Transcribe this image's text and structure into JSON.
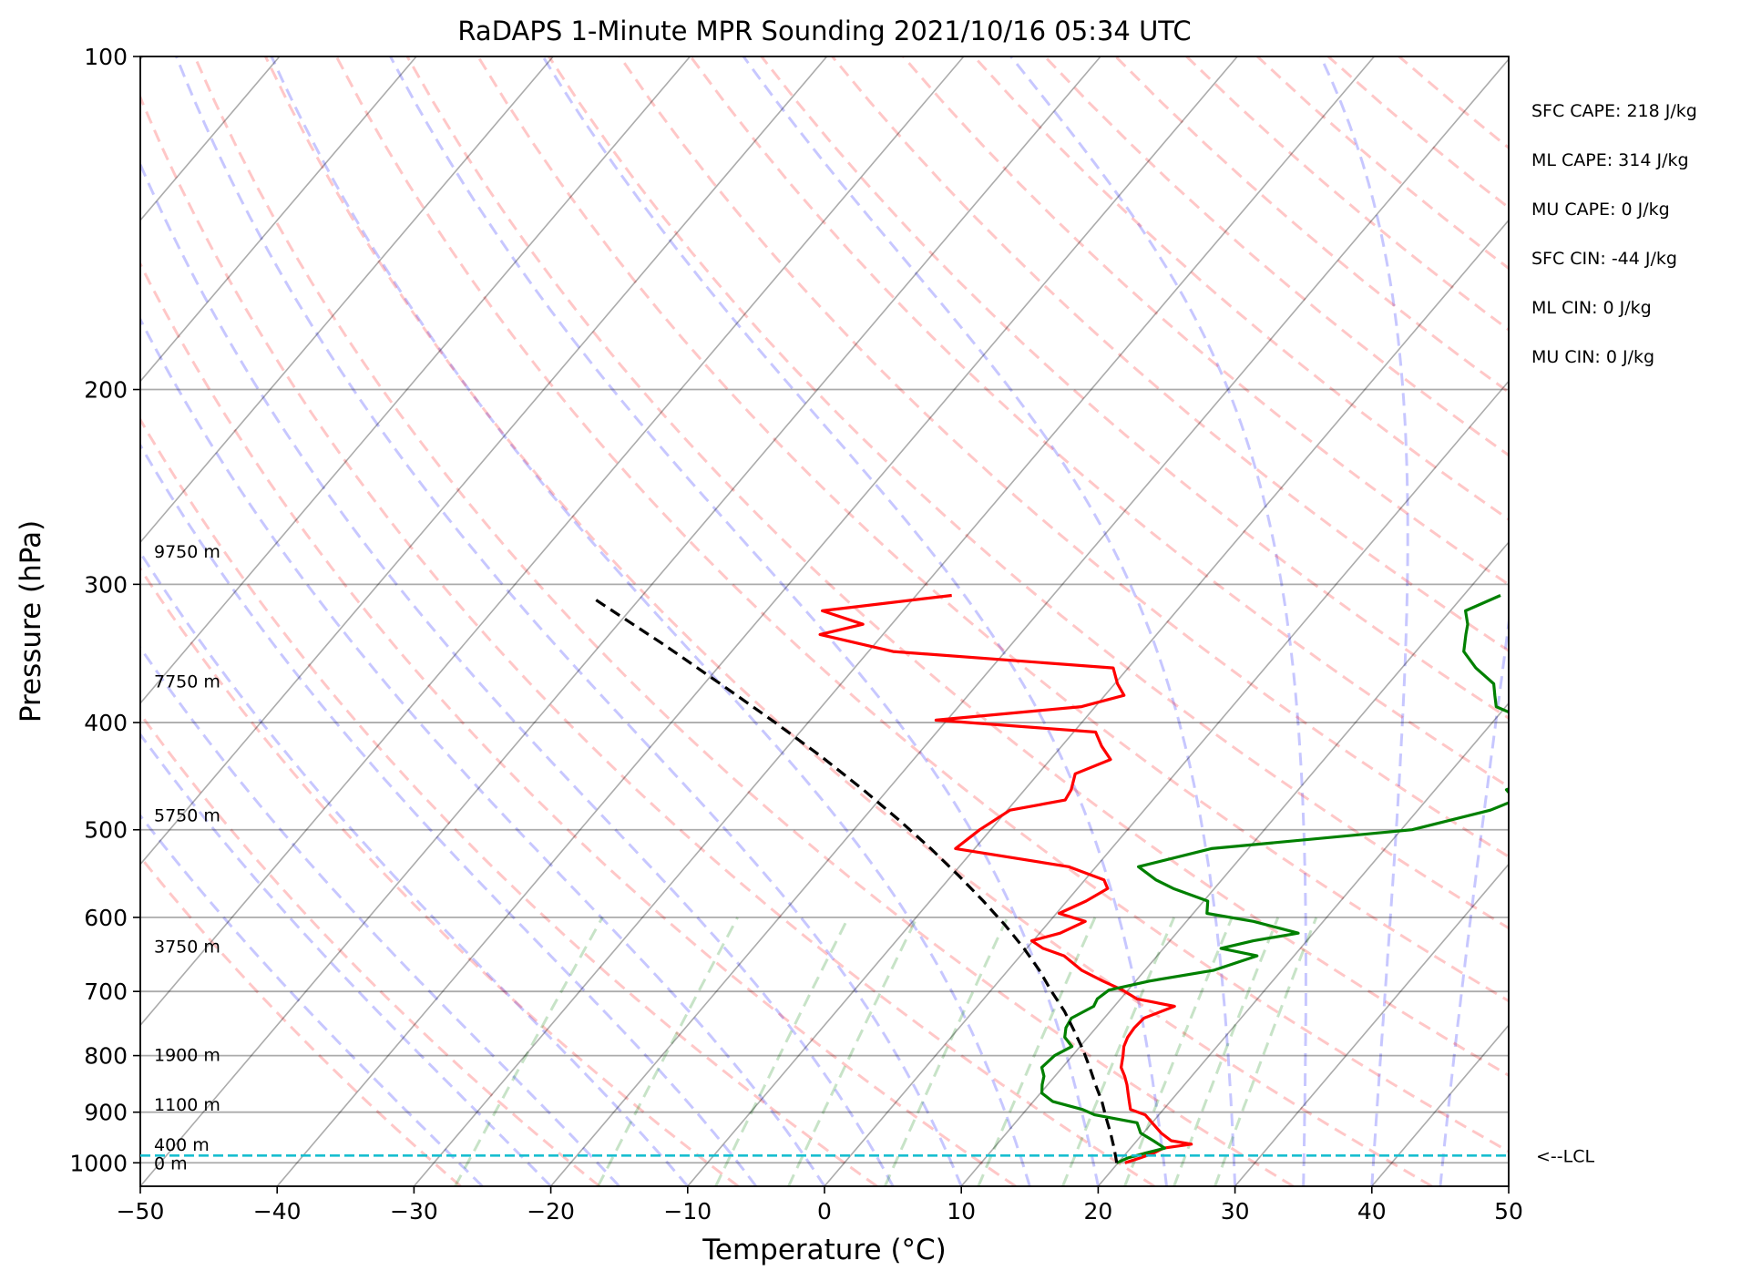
{
  "chart_data": {
    "type": "line",
    "title": "RaDAPS 1-Minute MPR Sounding 2021/10/16 05:34 UTC",
    "xlabel": "Temperature (°C)",
    "ylabel": "Pressure (hPa)",
    "xlim": [
      -50,
      50
    ],
    "ylim": [
      1050,
      100
    ],
    "y_scale": "log",
    "skew": "skew-T log-p",
    "grid": true,
    "x_ticks": [
      "−50",
      "−40",
      "−30",
      "−20",
      "−10",
      "0",
      "10",
      "20",
      "30",
      "40",
      "50"
    ],
    "x_tick_values": [
      -50,
      -40,
      -30,
      -20,
      -10,
      0,
      10,
      20,
      30,
      40,
      50
    ],
    "y_ticks": [
      "100",
      "200",
      "300",
      "400",
      "500",
      "600",
      "700",
      "800",
      "900",
      "1000"
    ],
    "y_tick_values": [
      100,
      200,
      300,
      400,
      500,
      600,
      700,
      800,
      900,
      1000
    ],
    "height_labels": [
      {
        "text": "9750 m",
        "p": 280
      },
      {
        "text": "7750 m",
        "p": 367
      },
      {
        "text": "5750 m",
        "p": 485
      },
      {
        "text": "3750 m",
        "p": 637
      },
      {
        "text": "1900 m",
        "p": 798
      },
      {
        "text": "1100 m",
        "p": 885
      },
      {
        "text": "400 m",
        "p": 962
      },
      {
        "text": "0 m",
        "p": 1000
      }
    ],
    "stats": [
      "SFC CAPE: 218 J/kg",
      "ML CAPE: 314 J/kg",
      "MU CAPE: 0 J/kg",
      "SFC CIN: -44 J/kg",
      "ML CIN: 0 J/kg",
      "MU CIN: 0 J/kg"
    ],
    "lcl": {
      "label": "<--LCL",
      "p": 985,
      "color": "#17becf"
    },
    "series": [
      {
        "id": "temperature",
        "color": "#ff0000",
        "points": [
          [
            1000,
            20.5
          ],
          [
            990,
            21.3
          ],
          [
            980,
            22.0
          ],
          [
            970,
            22.4
          ],
          [
            962,
            24.2
          ],
          [
            955,
            22.5
          ],
          [
            940,
            21.3
          ],
          [
            920,
            20.0
          ],
          [
            905,
            19.0
          ],
          [
            895,
            17.6
          ],
          [
            880,
            17.0
          ],
          [
            865,
            16.4
          ],
          [
            850,
            15.8
          ],
          [
            835,
            15.1
          ],
          [
            820,
            14.3
          ],
          [
            800,
            13.7
          ],
          [
            785,
            13.2
          ],
          [
            770,
            12.9
          ],
          [
            755,
            12.8
          ],
          [
            740,
            12.9
          ],
          [
            722,
            14.4
          ],
          [
            711,
            11.2
          ],
          [
            698,
            9.6
          ],
          [
            685,
            7.6
          ],
          [
            670,
            5.4
          ],
          [
            650,
            3.2
          ],
          [
            640,
            1.2
          ],
          [
            630,
            -0.1
          ],
          [
            620,
            1.5
          ],
          [
            605,
            2.6
          ],
          [
            595,
            0.2
          ],
          [
            580,
            1.4
          ],
          [
            565,
            2.2
          ],
          [
            555,
            1.4
          ],
          [
            540,
            -2.0
          ],
          [
            520,
            -11.4
          ],
          [
            500,
            -10.8
          ],
          [
            480,
            -9.8
          ],
          [
            470,
            -6.4
          ],
          [
            460,
            -6.6
          ],
          [
            445,
            -7.3
          ],
          [
            432,
            -5.6
          ],
          [
            420,
            -7.1
          ],
          [
            408,
            -8.4
          ],
          [
            398,
            -20.8
          ],
          [
            387,
            -11.0
          ],
          [
            378,
            -8.6
          ],
          [
            369,
            -9.8
          ],
          [
            357,
            -11.1
          ],
          [
            345,
            -28.2
          ],
          [
            333,
            -34.6
          ],
          [
            326,
            -32.1
          ],
          [
            317,
            -35.9
          ],
          [
            307,
            -27.4
          ]
        ]
      },
      {
        "id": "dewpoint",
        "color": "#008000",
        "points": [
          [
            1000,
            19.9
          ],
          [
            990,
            20.4
          ],
          [
            980,
            21.4
          ],
          [
            970,
            22.5
          ],
          [
            962,
            21.8
          ],
          [
            955,
            21.2
          ],
          [
            940,
            19.8
          ],
          [
            920,
            18.9
          ],
          [
            905,
            15.3
          ],
          [
            895,
            14.1
          ],
          [
            880,
            11.4
          ],
          [
            865,
            10.1
          ],
          [
            850,
            9.6
          ],
          [
            835,
            9.2
          ],
          [
            820,
            8.5
          ],
          [
            800,
            8.7
          ],
          [
            785,
            9.4
          ],
          [
            770,
            8.3
          ],
          [
            755,
            7.8
          ],
          [
            740,
            7.6
          ],
          [
            722,
            8.5
          ],
          [
            711,
            8.3
          ],
          [
            698,
            8.6
          ],
          [
            685,
            11.0
          ],
          [
            670,
            15.0
          ],
          [
            650,
            17.3
          ],
          [
            640,
            14.2
          ],
          [
            630,
            16.1
          ],
          [
            620,
            18.9
          ],
          [
            605,
            14.9
          ],
          [
            595,
            11.0
          ],
          [
            580,
            10.3
          ],
          [
            565,
            7.0
          ],
          [
            555,
            5.2
          ],
          [
            540,
            3.1
          ],
          [
            520,
            7.3
          ],
          [
            500,
            20.8
          ],
          [
            480,
            25.3
          ],
          [
            470,
            26.5
          ],
          [
            460,
            25.2
          ],
          [
            445,
            27.8
          ],
          [
            432,
            27.9
          ],
          [
            420,
            27.3
          ],
          [
            408,
            25.8
          ],
          [
            398,
            22.4
          ],
          [
            387,
            19.3
          ],
          [
            378,
            18.5
          ],
          [
            369,
            17.7
          ],
          [
            357,
            15.4
          ],
          [
            345,
            13.5
          ],
          [
            333,
            12.6
          ],
          [
            326,
            12.1
          ],
          [
            317,
            11.1
          ],
          [
            307,
            12.7
          ]
        ]
      },
      {
        "id": "parcel",
        "color": "#000000",
        "dashed": true,
        "points": [
          [
            1000,
            19.9
          ],
          [
            970,
            18.8
          ],
          [
            940,
            17.6
          ],
          [
            910,
            16.3
          ],
          [
            880,
            15.0
          ],
          [
            850,
            13.5
          ],
          [
            820,
            12.0
          ],
          [
            790,
            10.4
          ],
          [
            760,
            8.6
          ],
          [
            730,
            6.7
          ],
          [
            700,
            4.5
          ],
          [
            670,
            2.3
          ],
          [
            640,
            -0.2
          ],
          [
            610,
            -3.0
          ],
          [
            580,
            -6.1
          ],
          [
            550,
            -9.5
          ],
          [
            520,
            -13.2
          ],
          [
            490,
            -17.3
          ],
          [
            460,
            -21.8
          ],
          [
            430,
            -26.8
          ],
          [
            400,
            -32.4
          ],
          [
            370,
            -38.6
          ],
          [
            340,
            -45.4
          ],
          [
            310,
            -53.1
          ]
        ]
      }
    ]
  }
}
